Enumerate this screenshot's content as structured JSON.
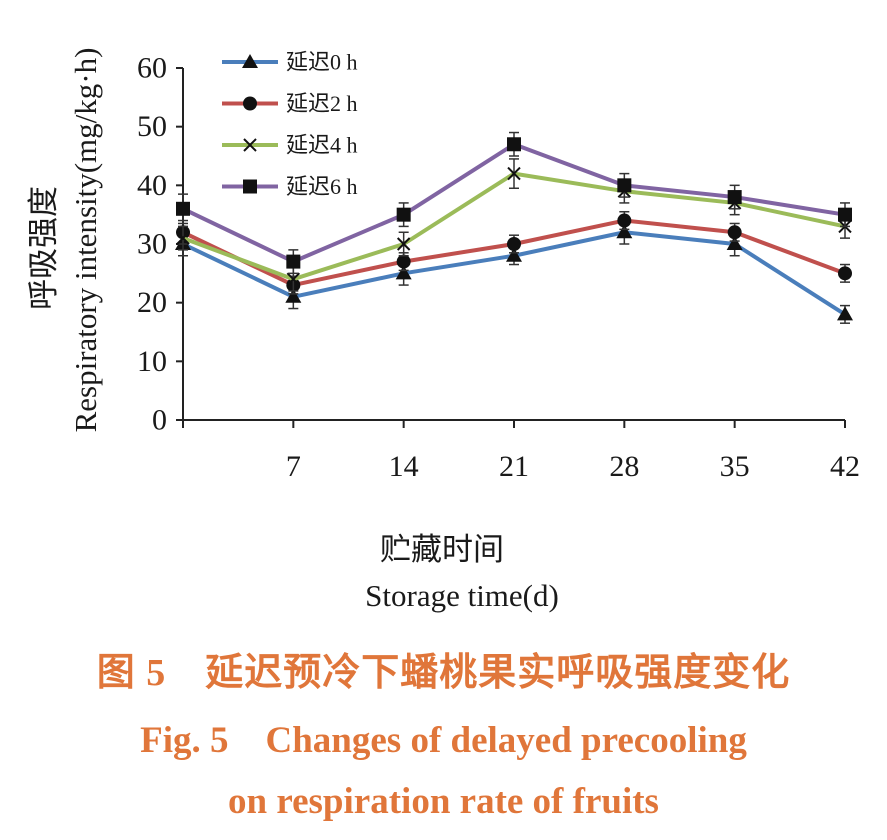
{
  "chart_data": {
    "type": "line",
    "x": [
      0,
      7,
      14,
      21,
      28,
      35,
      42
    ],
    "xticks": [
      7,
      14,
      21,
      28,
      35,
      42
    ],
    "yticks": [
      0,
      10,
      20,
      30,
      40,
      50,
      60
    ],
    "xlim": [
      0,
      42
    ],
    "ylim": [
      0,
      60
    ],
    "xlabel": "贮藏时间",
    "xlabel_en": "Storage time(d)",
    "ylabel": "呼吸强度",
    "ylabel_en": "Respiratory intensity(mg/kg·h)",
    "grid": false,
    "legend": "top-left",
    "series": [
      {
        "name": "延迟0 h",
        "color": "#4a7ebb",
        "marker": "triangle",
        "values": [
          30,
          21,
          25,
          28,
          32,
          30,
          18
        ],
        "error": [
          2,
          2,
          2,
          1.5,
          2,
          2,
          1.5
        ]
      },
      {
        "name": "延迟2 h",
        "color": "#c0504d",
        "marker": "circle",
        "values": [
          32,
          23,
          27,
          30,
          34,
          32,
          25
        ],
        "error": [
          2,
          1.5,
          1.5,
          1.5,
          1.5,
          1.5,
          1.5
        ]
      },
      {
        "name": "延迟4 h",
        "color": "#9bbb59",
        "marker": "cross",
        "values": [
          31,
          24,
          30,
          42,
          39,
          37,
          33
        ],
        "error": [
          2,
          2,
          2,
          2.5,
          2,
          2,
          2
        ]
      },
      {
        "name": "延迟6 h",
        "color": "#8064a2",
        "marker": "square",
        "values": [
          36,
          27,
          35,
          47,
          40,
          38,
          35
        ],
        "error": [
          2.5,
          2,
          2,
          2,
          2,
          2,
          2
        ]
      }
    ]
  },
  "caption": {
    "cn": "图 5　延迟预冷下蟠桃果实呼吸强度变化",
    "en_line1": "Fig. 5　Changes of delayed precooling",
    "en_line2": "on respiration rate of fruits"
  }
}
